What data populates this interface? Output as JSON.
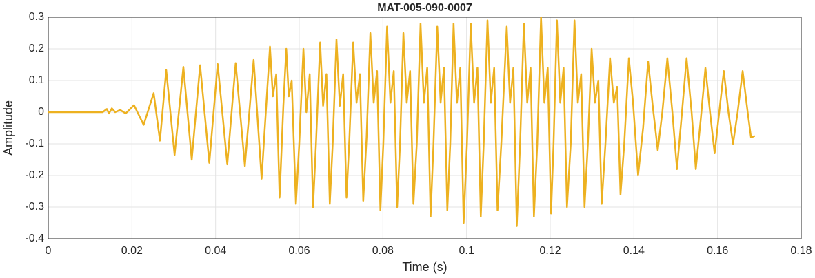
{
  "chart_data": {
    "type": "line",
    "title": "MAT-005-090-0007",
    "x_label": "Time (s)",
    "y_label": "Amplitude",
    "color": "#EDB120",
    "grid": true,
    "xlim": [
      0,
      0.18
    ],
    "xticks": [
      0,
      0.02,
      0.04,
      0.06,
      0.08,
      0.1,
      0.12,
      0.14,
      0.16,
      0.18
    ],
    "ylim": [
      -0.4,
      0.3
    ],
    "yticks": [
      -0.4,
      -0.3,
      -0.2,
      -0.1,
      0,
      0.1,
      0.2,
      0.3
    ],
    "x": [
      0,
      0.013,
      0.014,
      0.0145,
      0.0152,
      0.016,
      0.0172,
      0.0185,
      0.0205,
      0.0228,
      0.0252,
      0.0267,
      0.0282,
      0.0302,
      0.0323,
      0.0343,
      0.0363,
      0.0385,
      0.0405,
      0.0428,
      0.0448,
      0.047,
      0.0491,
      0.051,
      0.053,
      0.0537,
      0.0545,
      0.0553,
      0.0562,
      0.0569,
      0.0575,
      0.0582,
      0.0592,
      0.06,
      0.061,
      0.0617,
      0.0625,
      0.0633,
      0.064,
      0.065,
      0.0657,
      0.0665,
      0.0673,
      0.068,
      0.0689,
      0.0697,
      0.0705,
      0.0713,
      0.072,
      0.0729,
      0.0737,
      0.0745,
      0.0753,
      0.0761,
      0.077,
      0.0778,
      0.0786,
      0.0794,
      0.0801,
      0.081,
      0.0818,
      0.0826,
      0.0834,
      0.0841,
      0.0849,
      0.0857,
      0.0865,
      0.0873,
      0.0881,
      0.089,
      0.0898,
      0.0906,
      0.0914,
      0.0921,
      0.093,
      0.0938,
      0.0946,
      0.0954,
      0.0961,
      0.0969,
      0.0977,
      0.0985,
      0.0993,
      0.1001,
      0.101,
      0.1018,
      0.1026,
      0.1034,
      0.1041,
      0.105,
      0.1058,
      0.1066,
      0.1074,
      0.1083,
      0.1096,
      0.1104,
      0.1112,
      0.112,
      0.1128,
      0.1137,
      0.1145,
      0.1153,
      0.1161,
      0.1169,
      0.1178,
      0.1186,
      0.1194,
      0.1202,
      0.1208,
      0.1216,
      0.1224,
      0.1232,
      0.124,
      0.1249,
      0.1258,
      0.1266,
      0.1274,
      0.1282,
      0.129,
      0.1299,
      0.1307,
      0.1315,
      0.1323,
      0.1332,
      0.1343,
      0.1352,
      0.136,
      0.1368,
      0.1377,
      0.1388,
      0.1398,
      0.141,
      0.1422,
      0.1434,
      0.1445,
      0.1457,
      0.1468,
      0.148,
      0.1492,
      0.1503,
      0.1515,
      0.1526,
      0.1538,
      0.1548,
      0.156,
      0.1571,
      0.1582,
      0.1593,
      0.1604,
      0.1615,
      0.1626,
      0.1637,
      0.1648,
      0.166,
      0.1672,
      0.168,
      0.1689
    ],
    "values": [
      0,
      0,
      0.01,
      -0.004,
      0.012,
      0,
      0.007,
      -0.004,
      0.022,
      -0.04,
      0.06,
      -0.09,
      0.133,
      -0.135,
      0.143,
      -0.15,
      0.148,
      -0.16,
      0.152,
      -0.165,
      0.155,
      -0.17,
      0.165,
      -0.21,
      0.207,
      0.05,
      0.12,
      -0.27,
      0.02,
      0.2,
      0.05,
      0.1,
      -0.29,
      -0.1,
      0.2,
      0,
      0.12,
      -0.3,
      -0.1,
      0.22,
      0.02,
      0.12,
      -0.29,
      -0.1,
      0.23,
      0.02,
      0.12,
      -0.27,
      -0.08,
      0.22,
      0.03,
      0.12,
      -0.28,
      -0.08,
      0.25,
      0.03,
      0.13,
      -0.31,
      -0.1,
      0.27,
      0.03,
      0.13,
      -0.3,
      -0.1,
      0.25,
      0.03,
      0.13,
      -0.29,
      -0.1,
      0.28,
      0.03,
      0.14,
      -0.33,
      -0.1,
      0.27,
      0.03,
      0.14,
      -0.31,
      -0.1,
      0.28,
      0.03,
      0.14,
      -0.35,
      -0.1,
      0.28,
      0.03,
      0.14,
      -0.33,
      -0.1,
      0.29,
      0.03,
      0.14,
      -0.31,
      -0.1,
      0.27,
      0.03,
      0.14,
      -0.36,
      -0.1,
      0.28,
      0.03,
      0.14,
      -0.33,
      -0.1,
      0.3,
      0.03,
      0.14,
      -0.32,
      -0.1,
      0.29,
      0.03,
      0.14,
      -0.3,
      -0.1,
      0.29,
      0.03,
      0.12,
      -0.3,
      -0.1,
      0.2,
      0.03,
      0.1,
      -0.29,
      -0.1,
      0.17,
      0.03,
      0.08,
      -0.26,
      -0.1,
      0.17,
      0.03,
      -0.2,
      -0.05,
      0.16,
      0.02,
      -0.12,
      0,
      0.17,
      0,
      -0.18,
      0,
      0.17,
      0,
      -0.18,
      -0.02,
      0.14,
      0,
      -0.13,
      0,
      0.13,
      0,
      -0.1,
      0,
      0.13,
      0,
      -0.08,
      -0.075
    ]
  }
}
